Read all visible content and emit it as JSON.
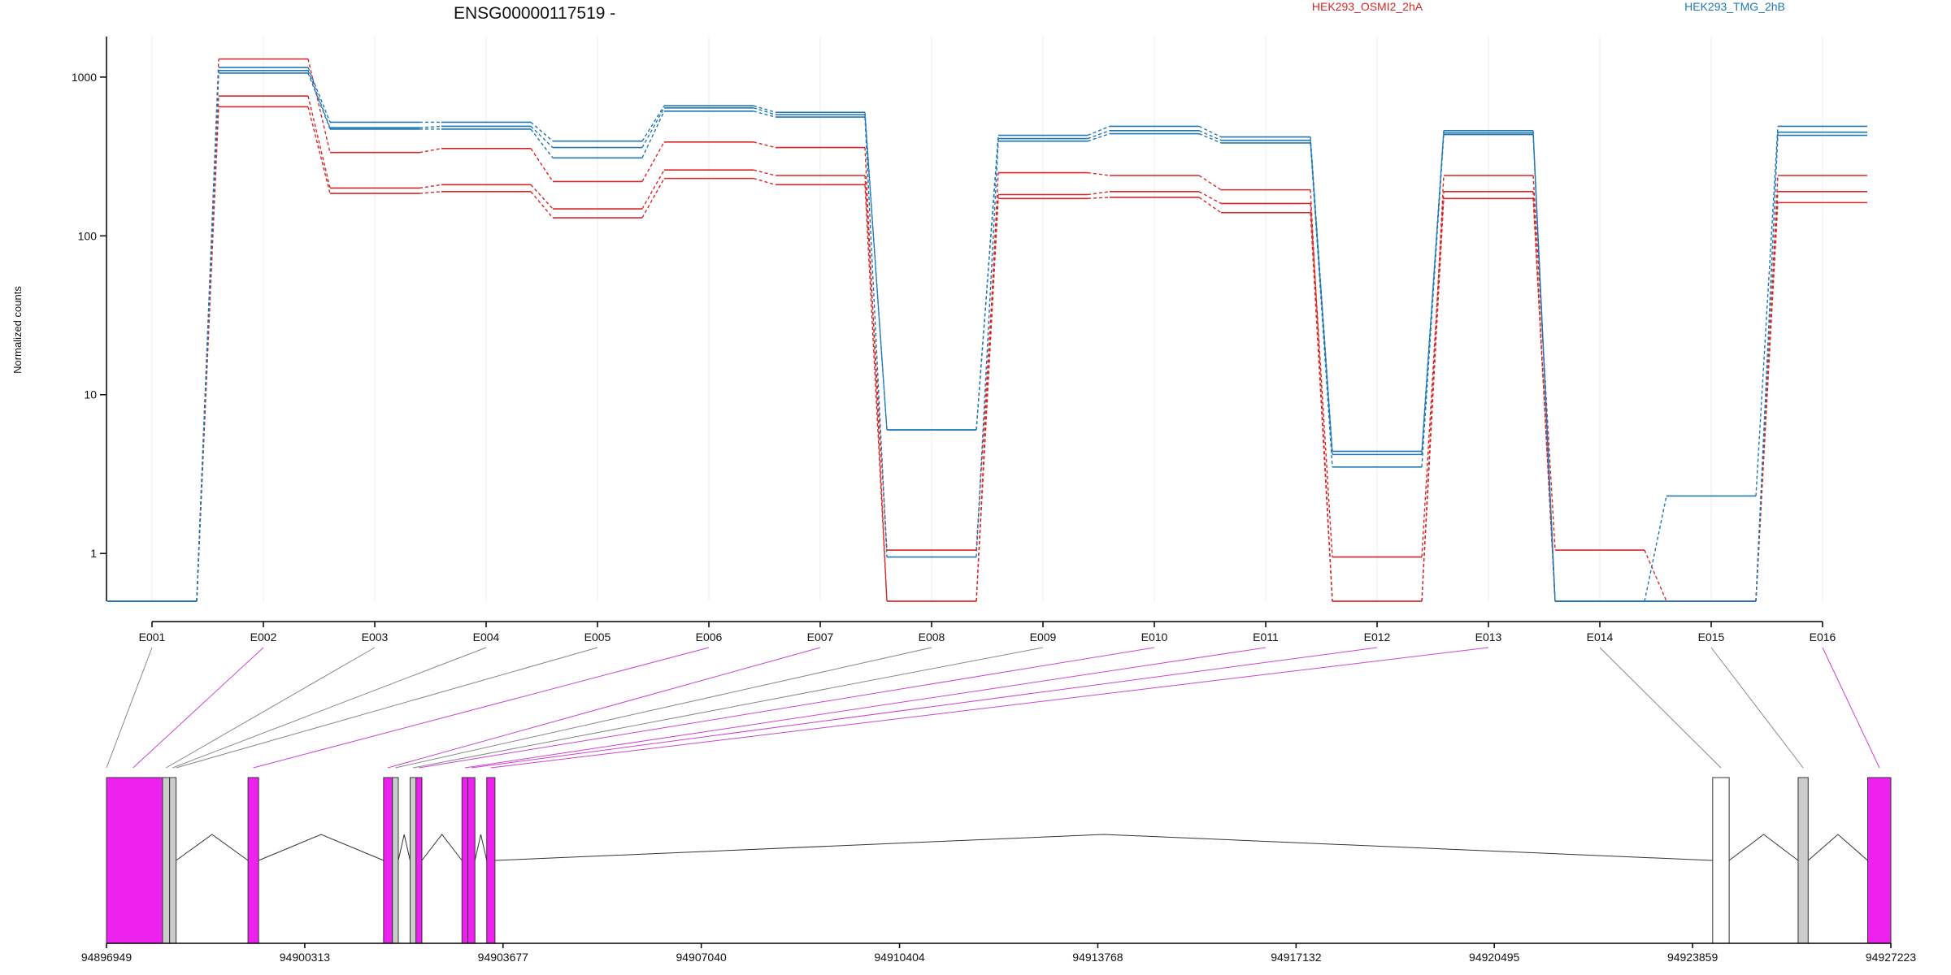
{
  "chart_data": {
    "type": "line",
    "title": "ENSG00000117519 -",
    "xlabel": "",
    "ylabel": "Normalized counts",
    "yscale": "log",
    "ylim": [
      0.5,
      1800
    ],
    "yticks": [
      1,
      10,
      100,
      1000
    ],
    "ytick_labels": [
      "1",
      "10",
      "100",
      "1000"
    ],
    "grid": "vertical-light",
    "legend_position": "top",
    "categories": [
      "E001",
      "E002",
      "E003",
      "E004",
      "E005",
      "E006",
      "E007",
      "E008",
      "E009",
      "E010",
      "E011",
      "E012",
      "E013",
      "E014",
      "E015",
      "E016"
    ],
    "series": [
      {
        "name": "HEK293_OSMI2_2hA",
        "color": "#d62728",
        "values": [
          0.5,
          1300,
          335,
          355,
          220,
          390,
          360,
          0.5,
          250,
          240,
          195,
          0.5,
          240,
          1.05,
          0.5,
          240
        ]
      },
      {
        "color": "#d62728",
        "values": [
          0.5,
          760,
          200,
          210,
          148,
          260,
          240,
          1.05,
          182,
          190,
          160,
          0.95,
          190,
          0.5,
          0.5,
          190
        ]
      },
      {
        "color": "#d62728",
        "values": [
          0.5,
          650,
          185,
          190,
          130,
          230,
          210,
          0.5,
          172,
          175,
          140,
          0.5,
          172,
          0.5,
          0.5,
          162
        ]
      },
      {
        "name": "HEK293_TMG_2hB",
        "color": "#1f77b4",
        "values": [
          0.5,
          1150,
          520,
          520,
          395,
          660,
          600,
          6,
          430,
          490,
          420,
          4.4,
          460,
          0.5,
          2.3,
          490
        ]
      },
      {
        "color": "#1f77b4",
        "values": [
          0.5,
          1100,
          480,
          490,
          360,
          640,
          580,
          6,
          410,
          460,
          400,
          4.2,
          445,
          0.5,
          0.5,
          450
        ]
      },
      {
        "color": "#1f77b4",
        "values": [
          0.5,
          1060,
          470,
          470,
          310,
          610,
          560,
          0.95,
          395,
          440,
          385,
          3.5,
          435,
          0.5,
          0.5,
          430
        ]
      }
    ],
    "gene_model": {
      "start": 94896949,
      "end": 94927223,
      "axis_ticks": [
        94896949,
        94900313,
        94903677,
        94907040,
        94910404,
        94913768,
        94917132,
        94920495,
        94923859,
        94927223
      ],
      "axis_tick_labels": [
        "94896949",
        "94900313",
        "94903677",
        "94907040",
        "94910404",
        "94913768",
        "94917132",
        "94920495",
        "94923859",
        "94927223"
      ],
      "highlight_color": "#ee22ee",
      "plain_color": "#cccccc",
      "exons": [
        {
          "start": 94896949,
          "end": 94897900,
          "fill": "#ee22ee"
        },
        {
          "start": 94897900,
          "end": 94898020,
          "fill": "#cccccc"
        },
        {
          "start": 94898020,
          "end": 94898130,
          "fill": "#cccccc"
        },
        {
          "start": 94899350,
          "end": 94899530,
          "fill": "#ee22ee"
        },
        {
          "start": 94901650,
          "end": 94901800,
          "fill": "#ee22ee"
        },
        {
          "start": 94901800,
          "end": 94901900,
          "fill": "#cccccc"
        },
        {
          "start": 94902100,
          "end": 94902200,
          "fill": "#cccccc"
        },
        {
          "start": 94902200,
          "end": 94902300,
          "fill": "#ee22ee"
        },
        {
          "start": 94902980,
          "end": 94903080,
          "fill": "#ee22ee"
        },
        {
          "start": 94903080,
          "end": 94903200,
          "fill": "#ee22ee"
        },
        {
          "start": 94903400,
          "end": 94903540,
          "fill": "#ee22ee"
        },
        {
          "start": 94924200,
          "end": 94924480,
          "fill": "#ffffff"
        },
        {
          "start": 94925650,
          "end": 94925820,
          "fill": "#cccccc"
        },
        {
          "start": 94926830,
          "end": 94927223,
          "fill": "#ee22ee"
        }
      ],
      "connectors": [
        {
          "exon": "E001",
          "pos": 94896949,
          "color": "#888888"
        },
        {
          "exon": "E002",
          "pos": 94897400,
          "color": "#cc44cc"
        },
        {
          "exon": "E003",
          "pos": 94897960,
          "color": "#888888"
        },
        {
          "exon": "E004",
          "pos": 94898070,
          "color": "#888888"
        },
        {
          "exon": "E005",
          "pos": 94898130,
          "color": "#888888"
        },
        {
          "exon": "E006",
          "pos": 94899440,
          "color": "#cc44cc"
        },
        {
          "exon": "E007",
          "pos": 94901720,
          "color": "#cc44cc"
        },
        {
          "exon": "E008",
          "pos": 94901850,
          "color": "#888888"
        },
        {
          "exon": "E009",
          "pos": 94902150,
          "color": "#888888"
        },
        {
          "exon": "E010",
          "pos": 94902250,
          "color": "#cc44cc"
        },
        {
          "exon": "E011",
          "pos": 94903030,
          "color": "#cc44cc"
        },
        {
          "exon": "E012",
          "pos": 94903140,
          "color": "#cc44cc"
        },
        {
          "exon": "E013",
          "pos": 94903470,
          "color": "#cc44cc"
        },
        {
          "exon": "E014",
          "pos": 94924340,
          "color": "#888888"
        },
        {
          "exon": "E015",
          "pos": 94925735,
          "color": "#888888"
        },
        {
          "exon": "E016",
          "pos": 94927030,
          "color": "#cc44cc"
        }
      ]
    }
  }
}
